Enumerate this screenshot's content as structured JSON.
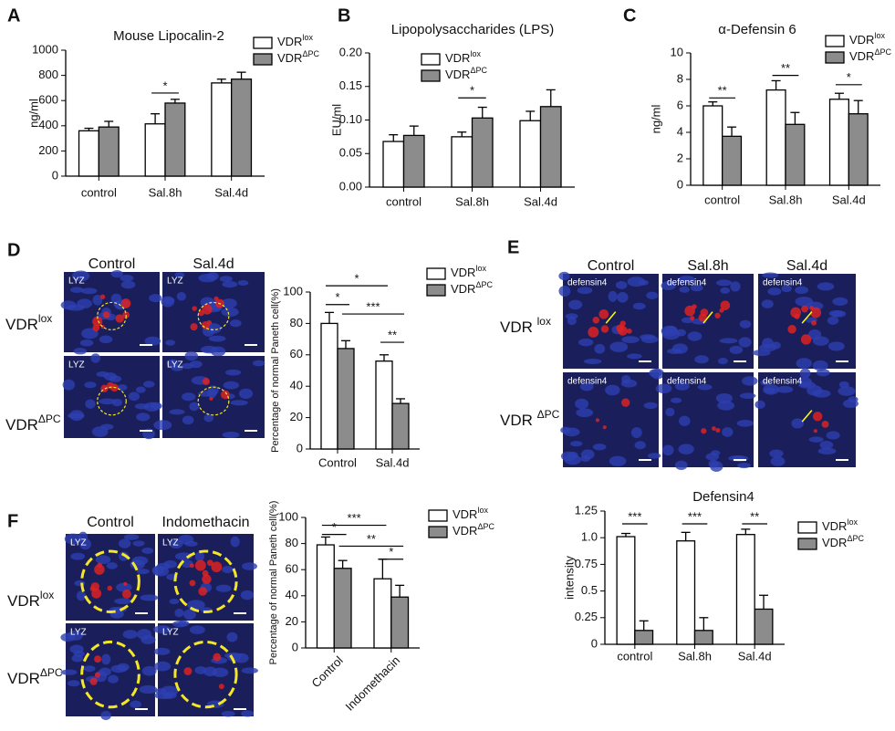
{
  "chart_data": [
    {
      "type": "bar",
      "panel": "A",
      "title": "Mouse Lipocalin-2",
      "ylabel": "ng/ml",
      "categories": [
        "control",
        "Sal.8h",
        "Sal.4d"
      ],
      "series": [
        {
          "name": "VDR",
          "name_sup": "lox",
          "color": "#ffffff",
          "values": [
            360,
            415,
            740
          ],
          "errors": [
            20,
            80,
            30
          ]
        },
        {
          "name": "VDR",
          "name_sup": "ΔPC",
          "color": "#8c8c8c",
          "values": [
            390,
            580,
            770
          ],
          "errors": [
            45,
            30,
            55
          ]
        }
      ],
      "ylim": [
        0,
        1000
      ],
      "yticks": [
        0,
        200,
        400,
        600,
        800,
        1000
      ],
      "annotations": [
        "*"
      ]
    },
    {
      "type": "bar",
      "panel": "B",
      "title": "Lipopolysaccharides (LPS)",
      "ylabel": "EU/ml",
      "categories": [
        "control",
        "Sal.8h",
        "Sal.4d"
      ],
      "series": [
        {
          "name": "VDR",
          "name_sup": "lox",
          "color": "#ffffff",
          "values": [
            0.068,
            0.075,
            0.099
          ],
          "errors": [
            0.01,
            0.007,
            0.014
          ]
        },
        {
          "name": "VDR",
          "name_sup": "ΔPC",
          "color": "#8c8c8c",
          "values": [
            0.077,
            0.103,
            0.12
          ],
          "errors": [
            0.014,
            0.016,
            0.025
          ]
        }
      ],
      "ylim": [
        0,
        0.2
      ],
      "yticks": [
        {
          "value": 0,
          "label": "0.00"
        },
        {
          "value": 0.05,
          "label": "0.05"
        },
        {
          "value": 0.1,
          "label": "0.10"
        },
        {
          "value": 0.15,
          "label": "0.15"
        },
        {
          "value": 0.2,
          "label": "0.20"
        }
      ],
      "annotations": [
        "*"
      ]
    },
    {
      "type": "bar",
      "panel": "C",
      "title": "α-Defensin 6",
      "ylabel": "ng/ml",
      "categories": [
        "control",
        "Sal.8h",
        "Sal.4d"
      ],
      "series": [
        {
          "name": "VDR",
          "name_sup": "lox",
          "color": "#ffffff",
          "values": [
            6.0,
            7.2,
            6.5
          ],
          "errors": [
            0.3,
            0.7,
            0.45
          ]
        },
        {
          "name": "VDR",
          "name_sup": "ΔPC",
          "color": "#8c8c8c",
          "values": [
            3.7,
            4.6,
            5.4
          ],
          "errors": [
            0.7,
            0.9,
            1.0
          ]
        }
      ],
      "ylim": [
        0,
        10
      ],
      "yticks": [
        0,
        2,
        4,
        6,
        8,
        10
      ],
      "annotations": [
        "**",
        "**",
        "*"
      ]
    },
    {
      "type": "bar",
      "ylabel": "Percentage of normal Paneth cell(%)",
      "categories": [
        "Control",
        "Sal.4d"
      ],
      "series": [
        {
          "name": "VDR",
          "name_sup": "lox",
          "color": "#ffffff",
          "values": [
            80,
            56
          ],
          "errors": [
            7,
            4
          ]
        },
        {
          "name": "VDR",
          "name_sup": "ΔPC",
          "color": "#8c8c8c",
          "values": [
            64,
            29
          ],
          "errors": [
            5,
            3
          ]
        }
      ],
      "ylim": [
        0,
        100
      ],
      "yticks": [
        0,
        20,
        40,
        60,
        80,
        100
      ],
      "annotations": [
        "*",
        "*",
        "***",
        "**"
      ]
    },
    {
      "type": "bar",
      "ylabel": "Percentage of normal Paneth cell(%)",
      "categories": [
        "Control",
        "Indomethacin"
      ],
      "series": [
        {
          "name": "VDR",
          "name_sup": "lox",
          "color": "#ffffff",
          "values": [
            79,
            53
          ],
          "errors": [
            6,
            15
          ]
        },
        {
          "name": "VDR",
          "name_sup": "ΔPC",
          "color": "#8c8c8c",
          "values": [
            61,
            39
          ],
          "errors": [
            6,
            9
          ]
        }
      ],
      "ylim": [
        0,
        100
      ],
      "yticks": [
        0,
        20,
        40,
        60,
        80,
        100
      ],
      "annotations": [
        "***",
        "*",
        "**",
        "*"
      ]
    },
    {
      "type": "bar",
      "title": "Defensin4",
      "ylabel": "intensity",
      "categories": [
        "control",
        "Sal.8h",
        "Sal.4d"
      ],
      "series": [
        {
          "name": "VDR",
          "name_sup": "lox",
          "color": "#ffffff",
          "values": [
            1.01,
            0.97,
            1.03
          ],
          "errors": [
            0.03,
            0.08,
            0.05
          ]
        },
        {
          "name": "VDR",
          "name_sup": "ΔPC",
          "color": "#8c8c8c",
          "values": [
            0.13,
            0.13,
            0.33
          ],
          "errors": [
            0.09,
            0.12,
            0.13
          ]
        }
      ],
      "ylim": [
        0,
        1.25
      ],
      "yticks": [
        0,
        0.25,
        0.5,
        0.75,
        {
          "value": 1,
          "label": "1.0"
        },
        1.25
      ],
      "annotations": [
        "***",
        "***",
        "**"
      ]
    }
  ],
  "images": [
    {
      "panel": "D",
      "columns": [
        "Control",
        "Sal.4d"
      ],
      "rows": [
        {
          "text": "VDR",
          "sup": "lox"
        },
        {
          "text": "VDR",
          "sup": "ΔPC"
        }
      ],
      "tile_label": "LYZ"
    },
    {
      "panel": "E",
      "columns": [
        "Control",
        "Sal.8h",
        "Sal.4d"
      ],
      "rows": [
        {
          "text": "VDR ",
          "sup": "lox"
        },
        {
          "text": "VDR ",
          "sup": "ΔPC"
        }
      ],
      "tile_label": "defensin4"
    },
    {
      "panel": "F",
      "columns": [
        "Control",
        "Indomethacin"
      ],
      "rows": [
        {
          "text": "VDR",
          "sup": "lox"
        },
        {
          "text": "VDR",
          "sup": "ΔPC"
        }
      ],
      "tile_label": "LYZ"
    }
  ]
}
